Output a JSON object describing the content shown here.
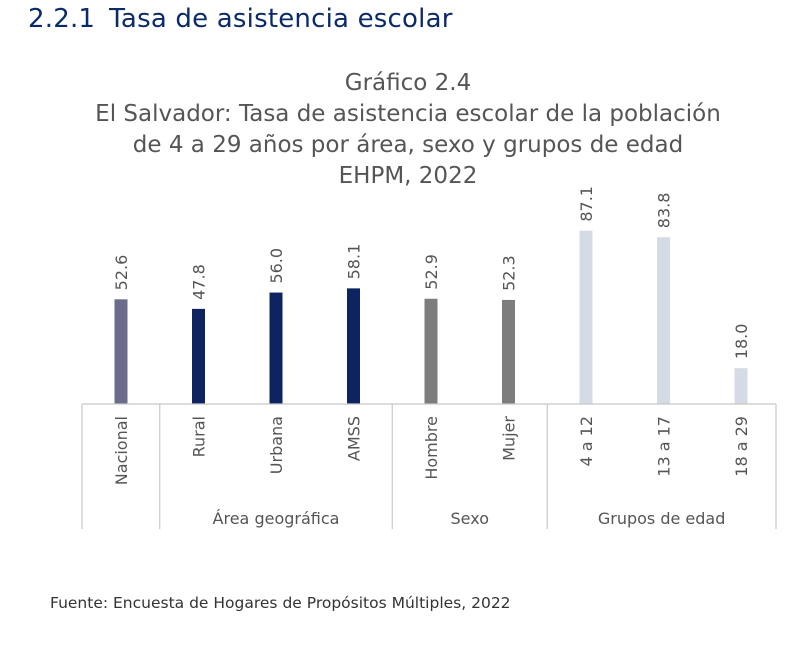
{
  "section": {
    "number": "2.2.1",
    "title": "Tasa de asistencia escolar"
  },
  "chart_data": {
    "type": "bar",
    "title_lines": [
      "Gráfico 2.4",
      "El Salvador: Tasa de asistencia escolar de la población",
      "de 4 a 29 años por área, sexo y grupos de edad",
      "EHPM, 2022"
    ],
    "categories": [
      "Nacional",
      "Rural",
      "Urbana",
      "AMSS",
      "Hombre",
      "Mujer",
      "4 a 12",
      "13 a 17",
      "18 a 29"
    ],
    "values": [
      52.6,
      47.8,
      56.0,
      58.1,
      52.9,
      52.3,
      87.1,
      83.8,
      18.0
    ],
    "value_labels": [
      "52.6",
      "47.8",
      "56.0",
      "58.1",
      "52.9",
      "52.3",
      "87.1",
      "83.8",
      "18.0"
    ],
    "colors": [
      "#6b6b8c",
      "#0d2461",
      "#0d2461",
      "#0d2461",
      "#7d7d7d",
      "#7d7d7d",
      "#d5dbe5",
      "#d5dbe5",
      "#d5dbe5"
    ],
    "groups": [
      {
        "label": "",
        "categories": [
          "Nacional"
        ]
      },
      {
        "label": "Área geográfica",
        "categories": [
          "Rural",
          "Urbana",
          "AMSS"
        ]
      },
      {
        "label": "Sexo",
        "categories": [
          "Hombre",
          "Mujer"
        ]
      },
      {
        "label": "Grupos de edad",
        "categories": [
          "4 a 12",
          "13 a 17",
          "18 a 29"
        ]
      }
    ],
    "ylim": [
      0,
      100
    ],
    "grid": false,
    "legend": "none"
  },
  "source": "Fuente: Encuesta de Hogares de Propósitos Múltiples, 2022"
}
